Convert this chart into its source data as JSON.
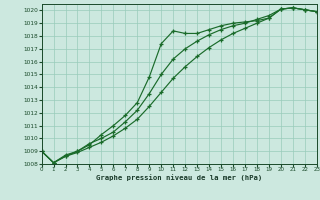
{
  "title": "Graphe pression niveau de la mer (hPa)",
  "xlim": [
    0,
    23
  ],
  "ylim": [
    1008,
    1020.5
  ],
  "xticks": [
    0,
    1,
    2,
    3,
    4,
    5,
    6,
    7,
    8,
    9,
    10,
    11,
    12,
    13,
    14,
    15,
    16,
    17,
    18,
    19,
    20,
    21,
    22,
    23
  ],
  "yticks": [
    1008,
    1009,
    1010,
    1011,
    1012,
    1013,
    1014,
    1015,
    1016,
    1017,
    1018,
    1019,
    1020
  ],
  "bg_color": "#cce8df",
  "grid_color": "#99ccbb",
  "line_color": "#1a6b2a",
  "line1_y": [
    1009.0,
    1008.1,
    1008.7,
    1009.0,
    1009.5,
    1010.3,
    1011.0,
    1011.8,
    1012.8,
    1014.8,
    1017.4,
    1018.4,
    1018.2,
    1018.2,
    1018.5,
    1018.8,
    1019.0,
    1019.1,
    1019.2,
    1019.4,
    1020.1,
    1020.2,
    1020.05,
    1019.9
  ],
  "line2_y": [
    1009.0,
    1008.1,
    1008.6,
    1009.0,
    1009.6,
    1010.0,
    1010.5,
    1011.3,
    1012.2,
    1013.5,
    1015.0,
    1016.2,
    1017.0,
    1017.6,
    1018.1,
    1018.5,
    1018.8,
    1019.0,
    1019.3,
    1019.6,
    1020.1,
    1020.2,
    1020.05,
    1019.9
  ],
  "line3_y": [
    1009.0,
    1008.1,
    1008.6,
    1008.9,
    1009.3,
    1009.7,
    1010.2,
    1010.8,
    1011.5,
    1012.5,
    1013.6,
    1014.7,
    1015.6,
    1016.4,
    1017.1,
    1017.7,
    1018.2,
    1018.6,
    1019.0,
    1019.4,
    1020.1,
    1020.2,
    1020.05,
    1019.9
  ]
}
